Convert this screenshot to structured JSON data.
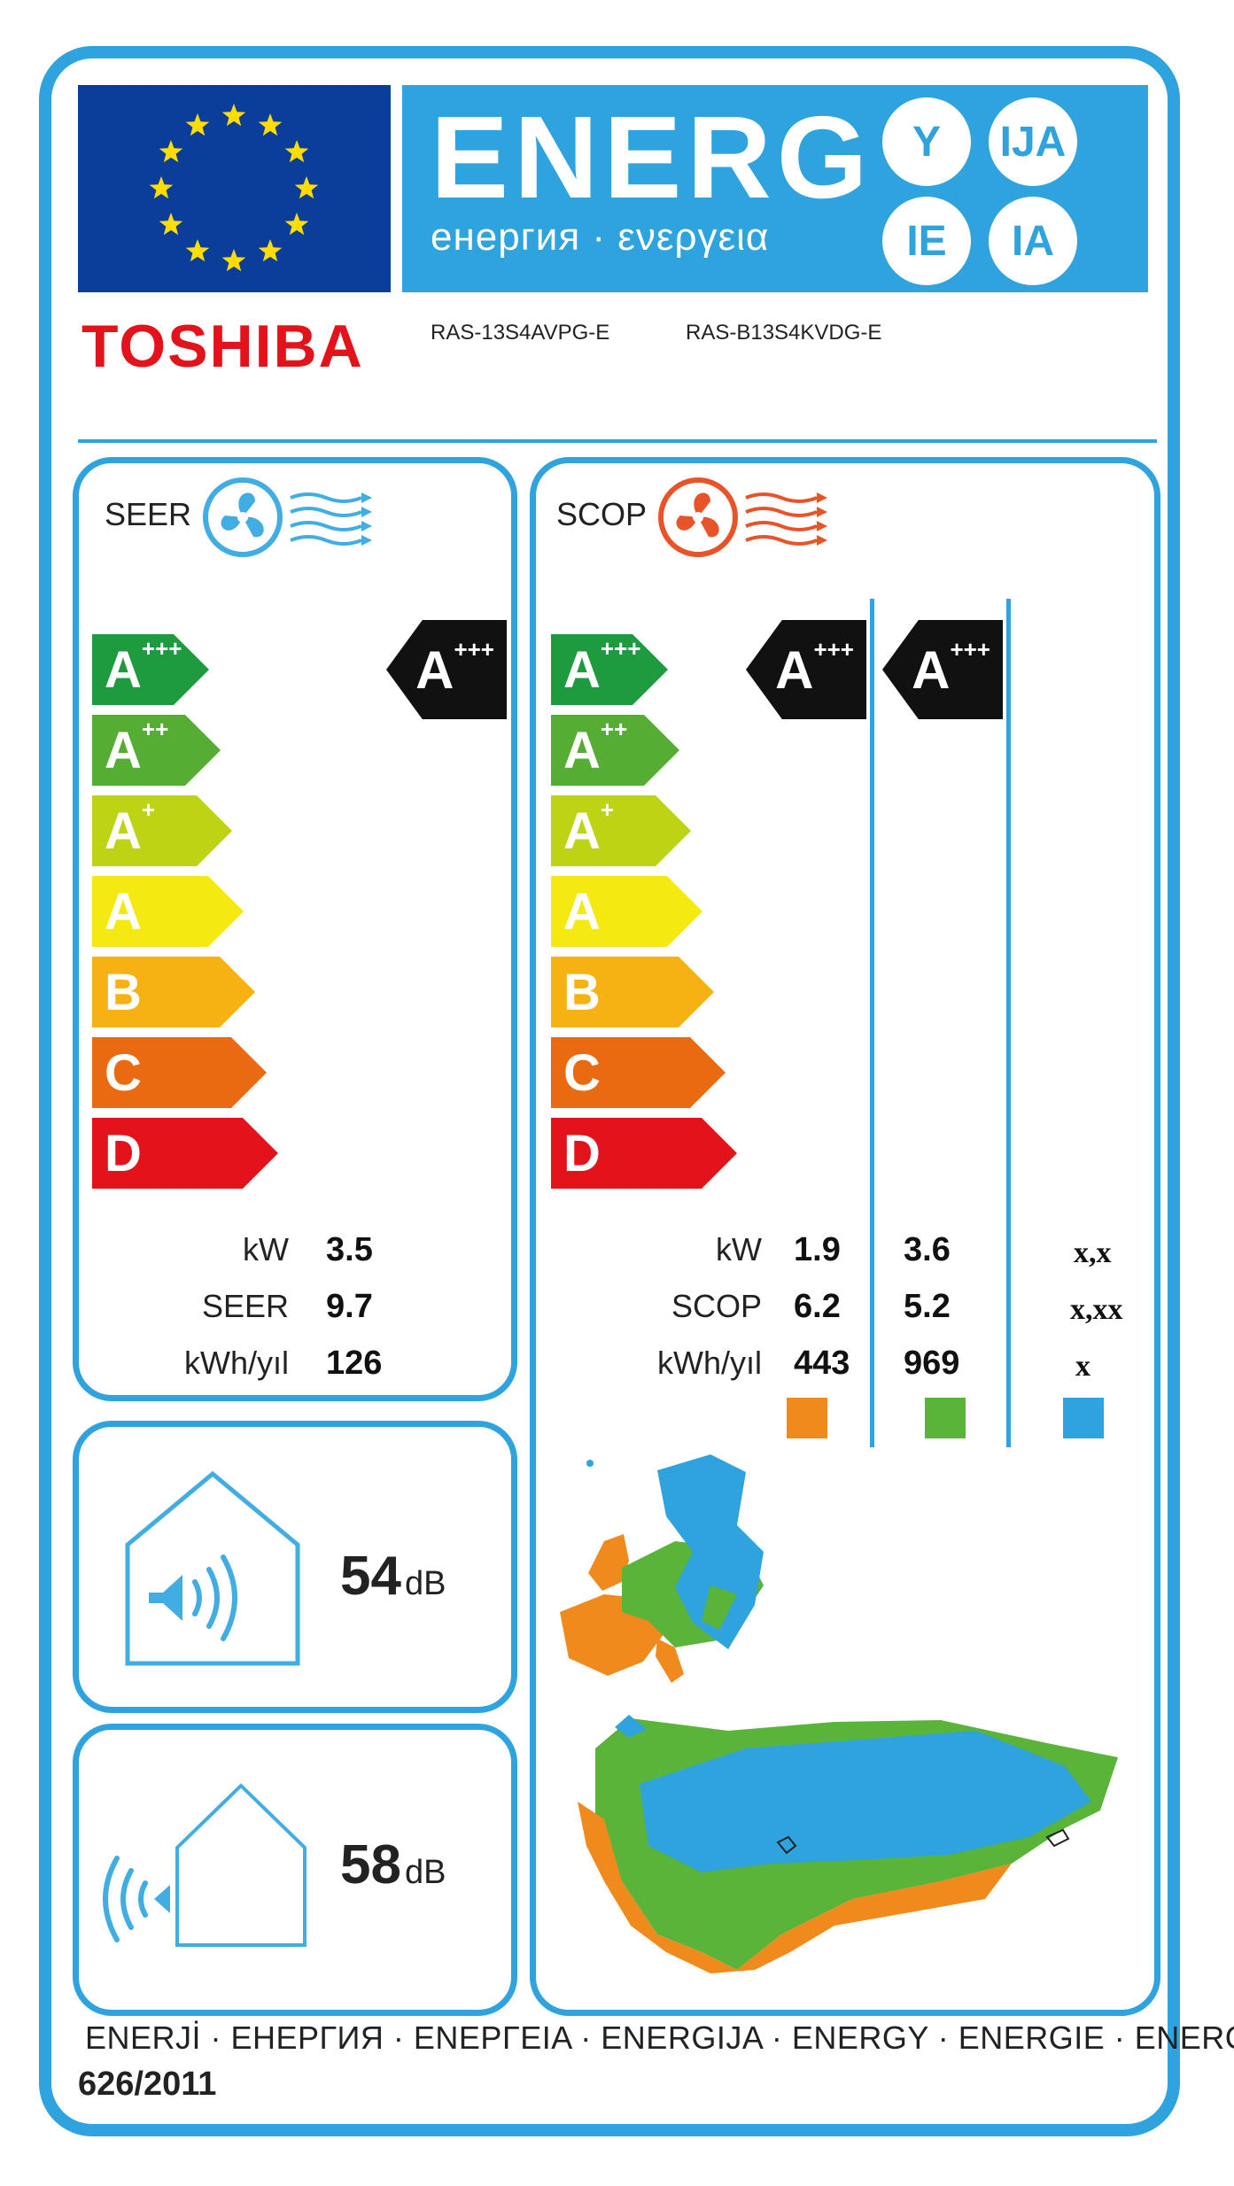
{
  "brand": "TOSHIBA",
  "models": [
    "RAS-13S4AVPG-E",
    "RAS-B13S4KVDG-E"
  ],
  "header": {
    "title": "ENERG",
    "subtitle": "енергия · ενεργεια",
    "suffixes": [
      "Y",
      "IJA",
      "IE",
      "IA"
    ]
  },
  "colors": {
    "frame": "#2ea3dd",
    "eu_flag": "#0b3e9a",
    "brand_red": "#e3131b",
    "zone_warm": "#f08a1c",
    "zone_average": "#5ab43a",
    "zone_cold": "#2ea3dd"
  },
  "scale": [
    {
      "letter": "A",
      "plus": "+++",
      "color": "#1e9a3f"
    },
    {
      "letter": "A",
      "plus": "++",
      "color": "#55ad33"
    },
    {
      "letter": "A",
      "plus": "+",
      "color": "#bdd415"
    },
    {
      "letter": "A",
      "plus": "",
      "color": "#f5e912"
    },
    {
      "letter": "B",
      "plus": "",
      "color": "#f6b112"
    },
    {
      "letter": "C",
      "plus": "",
      "color": "#ea6a11"
    },
    {
      "letter": "D",
      "plus": "",
      "color": "#e3131b"
    }
  ],
  "seer": {
    "title": "SEER",
    "icon": "fan-cooling-icon",
    "rating": {
      "letter": "A",
      "plus": "+++"
    },
    "labels": {
      "kw": "kW",
      "seer": "SEER",
      "kwh": "kWh/yıl"
    },
    "values": {
      "kw": "3.5",
      "seer": "9.7",
      "kwh": "126"
    }
  },
  "scop": {
    "title": "SCOP",
    "icon": "fan-heating-icon",
    "ratings": [
      {
        "letter": "A",
        "plus": "+++"
      },
      {
        "letter": "A",
        "plus": "+++"
      }
    ],
    "labels": {
      "kw": "kW",
      "scop": "SCOP",
      "kwh": "kWh/yıl"
    },
    "columns": [
      {
        "kw": "1.9",
        "scop": "6.2",
        "kwh": "443",
        "zone_color": "#f08a1c"
      },
      {
        "kw": "3.6",
        "scop": "5.2",
        "kwh": "969",
        "zone_color": "#5ab43a"
      },
      {
        "kw": "x,x",
        "scop": "x,xx",
        "kwh": "x",
        "zone_color": "#2ea3dd"
      }
    ]
  },
  "noise": {
    "indoor": {
      "value": "54",
      "unit": "dB",
      "icon": "indoor-speaker-icon"
    },
    "outdoor": {
      "value": "58",
      "unit": "dB",
      "icon": "outdoor-speaker-icon"
    }
  },
  "footer": {
    "languages": "ENERJİ  · ЕНЕРГИЯ · ΕΝΕΡΓΕΙΑ · ENERGIJA · ENERGY · ENERGIE · ENERGI",
    "regulation": "626/2011"
  }
}
